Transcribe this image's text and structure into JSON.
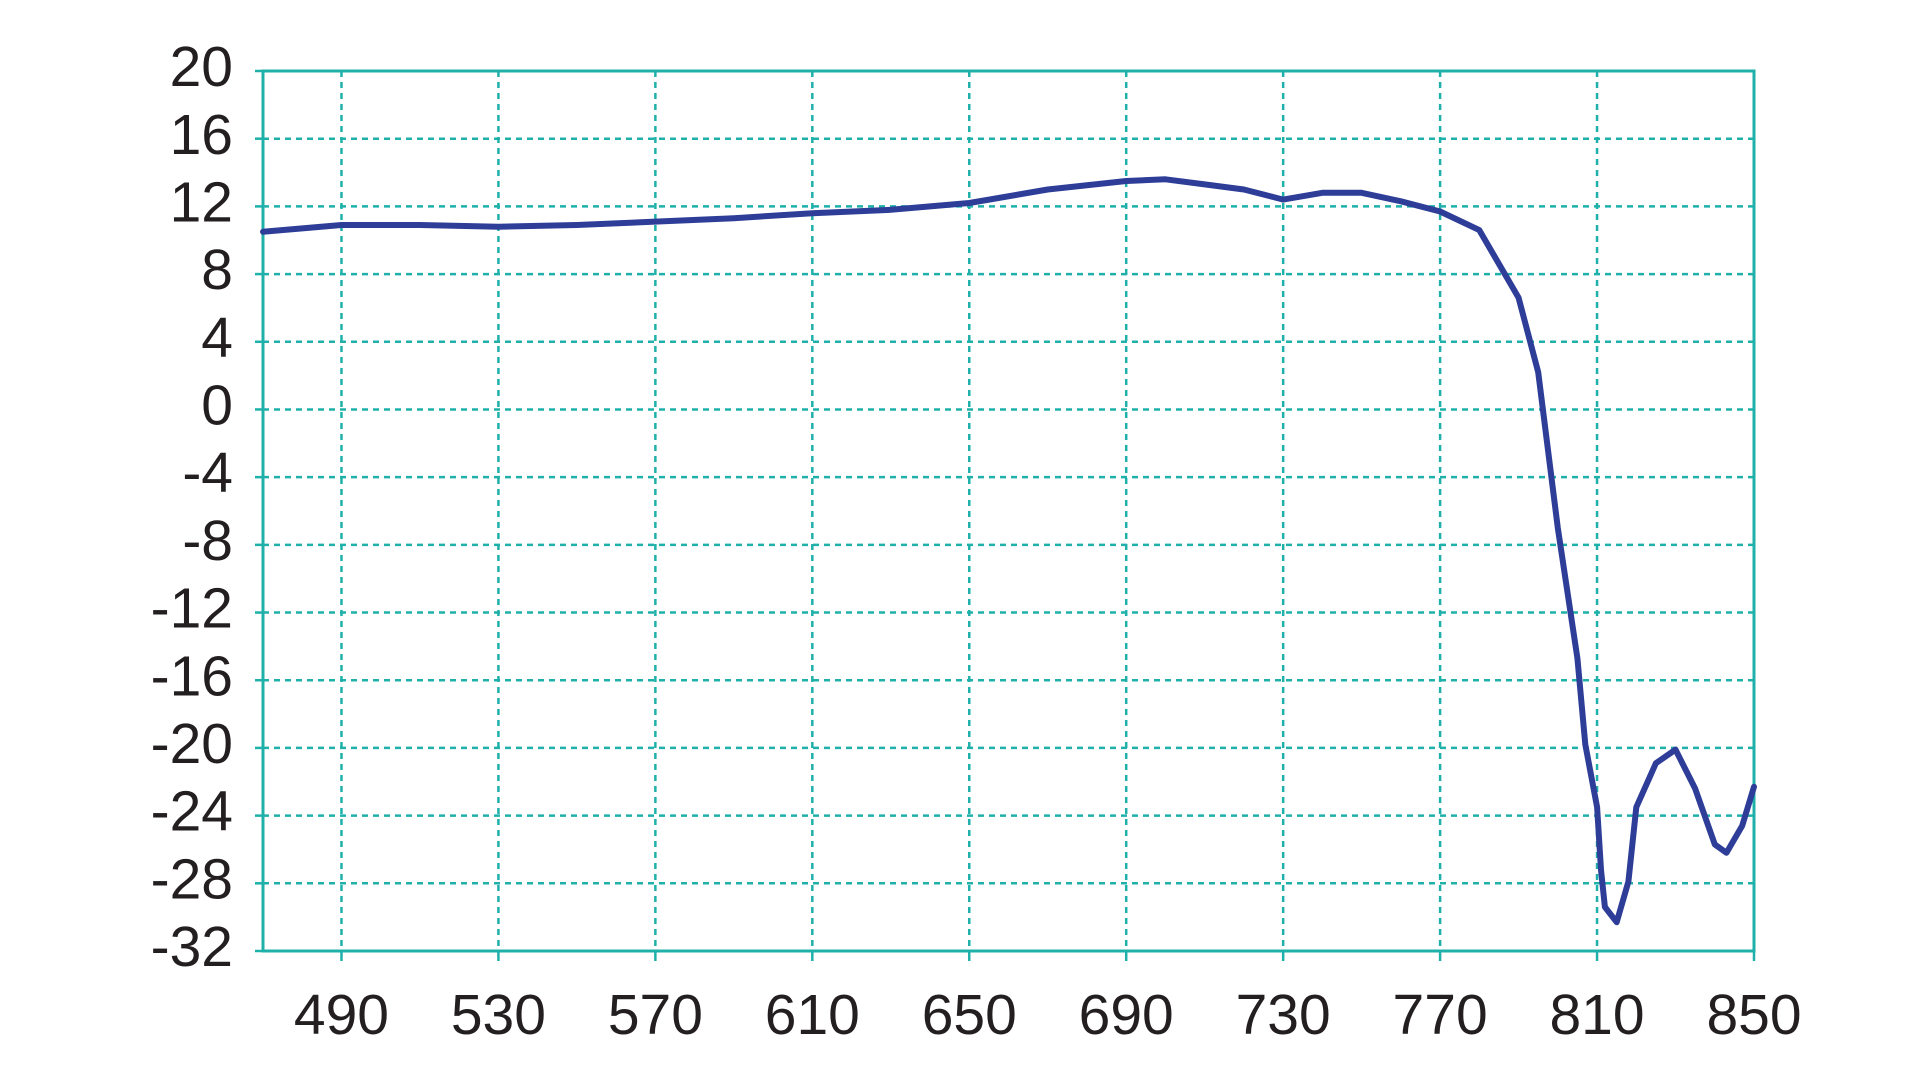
{
  "chart_data": {
    "type": "line",
    "x": [
      470,
      490,
      510,
      530,
      550,
      570,
      590,
      610,
      630,
      650,
      670,
      690,
      700,
      710,
      720,
      730,
      740,
      750,
      760,
      770,
      780,
      790,
      795,
      800,
      805,
      807,
      810,
      811,
      812,
      815,
      818,
      820,
      825,
      830,
      835,
      840,
      843,
      847,
      850
    ],
    "values": [
      10.5,
      10.9,
      10.9,
      10.8,
      10.9,
      11.1,
      11.3,
      11.6,
      11.8,
      12.2,
      13.0,
      13.5,
      13.6,
      13.3,
      13.0,
      12.4,
      12.8,
      12.8,
      12.3,
      11.7,
      10.6,
      6.6,
      2.2,
      -7.0,
      -14.7,
      -19.8,
      -23.5,
      -27.2,
      -29.4,
      -30.3,
      -27.9,
      -23.5,
      -20.9,
      -20.1,
      -22.4,
      -25.7,
      -26.2,
      -24.6,
      -22.3
    ],
    "color": "#2e3e98",
    "xlim": [
      470,
      850
    ],
    "xticks": [
      490,
      530,
      570,
      610,
      650,
      690,
      730,
      770,
      810,
      850
    ],
    "ylim": [
      -32,
      20
    ],
    "yticks": [
      -32,
      -28,
      -24,
      -20,
      -16,
      -12,
      -8,
      -4,
      0,
      4,
      8,
      12,
      16,
      20
    ],
    "grid": true,
    "grid_color": "#1fb0aa"
  }
}
